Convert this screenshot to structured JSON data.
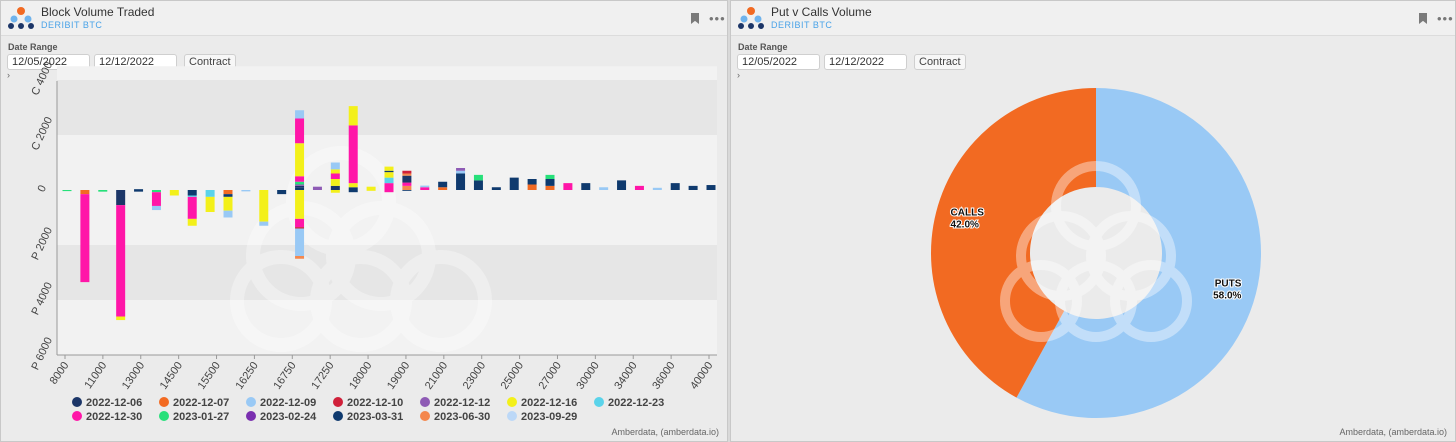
{
  "colors": {
    "header_bg": "#f0f0f0",
    "subtitle": "#4aa3e8",
    "calls": "#f26a22",
    "puts": "#99c9f5"
  },
  "left_panel": {
    "title": "Block Volume Traded",
    "subtitle": "DERIBIT BTC",
    "date_range_label": "Date Range",
    "start_date": "12/05/2022",
    "end_date": "12/12/2022",
    "contract_label": "Contract",
    "credit": "Amberdata, (amberdata.io)"
  },
  "right_panel": {
    "title": "Put v Calls Volume",
    "subtitle": "DERIBIT BTC",
    "date_range_label": "Date Range",
    "start_date": "12/05/2022",
    "end_date": "12/12/2022",
    "contract_label": "Contract",
    "credit": "Amberdata, (amberdata.io)"
  },
  "chart_data": [
    {
      "type": "bar",
      "stacked": true,
      "orientation": "calls positive, puts negative",
      "ylim": [
        -6000,
        4500
      ],
      "y_ticks": [
        {
          "value": 4000,
          "label": "C 4000"
        },
        {
          "value": 2000,
          "label": "C 2000"
        },
        {
          "value": 0,
          "label": "0"
        },
        {
          "value": -2000,
          "label": "P 2000"
        },
        {
          "value": -4000,
          "label": "P 4000"
        },
        {
          "value": -6000,
          "label": "P 6000"
        }
      ],
      "x_tick_labels": [
        "8000",
        "11000",
        "13000",
        "14500",
        "15500",
        "16250",
        "16750",
        "17250",
        "18000",
        "19000",
        "21000",
        "23000",
        "25000",
        "27000",
        "30000",
        "34000",
        "36000",
        "40000"
      ],
      "legend_position": "bottom",
      "legend": [
        {
          "name": "2022-12-06",
          "color": "#1c3668"
        },
        {
          "name": "2022-12-07",
          "color": "#f26a22"
        },
        {
          "name": "2022-12-09",
          "color": "#99c9f5"
        },
        {
          "name": "2022-12-10",
          "color": "#d0203a"
        },
        {
          "name": "2022-12-12",
          "color": "#8e5bb5"
        },
        {
          "name": "2022-12-16",
          "color": "#f3f01a"
        },
        {
          "name": "2022-12-23",
          "color": "#5ad3ea"
        },
        {
          "name": "2022-12-30",
          "color": "#ff16a8"
        },
        {
          "name": "2023-01-27",
          "color": "#27e07a"
        },
        {
          "name": "2023-02-24",
          "color": "#7a2fb0"
        },
        {
          "name": "2023-03-31",
          "color": "#0f3a6e"
        },
        {
          "name": "2023-06-30",
          "color": "#f4874d"
        },
        {
          "name": "2023-09-29",
          "color": "#bcd8f7"
        }
      ],
      "bars": [
        {
          "calls": [],
          "puts": [
            {
              "s": "2023-01-27",
              "v": 40
            }
          ]
        },
        {
          "calls": [],
          "puts": [
            {
              "s": "2022-12-07",
              "v": 150
            },
            {
              "s": "2022-12-30",
              "v": 3200
            }
          ]
        },
        {
          "calls": [],
          "puts": [
            {
              "s": "2023-01-27",
              "v": 60
            }
          ]
        },
        {
          "calls": [],
          "puts": [
            {
              "s": "2022-12-06",
              "v": 550
            },
            {
              "s": "2022-12-30",
              "v": 4050
            },
            {
              "s": "2022-12-16",
              "v": 130
            }
          ]
        },
        {
          "calls": [
            {
              "s": "2023-03-31",
              "v": 30
            }
          ],
          "puts": [
            {
              "s": "2023-03-31",
              "v": 60
            }
          ]
        },
        {
          "calls": [],
          "puts": [
            {
              "s": "2023-01-27",
              "v": 80
            },
            {
              "s": "2022-12-30",
              "v": 500
            },
            {
              "s": "2022-12-09",
              "v": 150
            }
          ]
        },
        {
          "calls": [],
          "puts": [
            {
              "s": "2022-12-16",
              "v": 200
            }
          ]
        },
        {
          "calls": [],
          "puts": [
            {
              "s": "2023-03-31",
              "v": 200
            },
            {
              "s": "2022-12-23",
              "v": 50
            },
            {
              "s": "2022-12-30",
              "v": 800
            },
            {
              "s": "2022-12-16",
              "v": 250
            }
          ]
        },
        {
          "calls": [],
          "puts": [
            {
              "s": "2022-12-23",
              "v": 250
            },
            {
              "s": "2022-12-16",
              "v": 550
            }
          ]
        },
        {
          "calls": [],
          "puts": [
            {
              "s": "2022-12-07",
              "v": 150
            },
            {
              "s": "2023-03-31",
              "v": 100
            },
            {
              "s": "2022-12-16",
              "v": 500
            },
            {
              "s": "2022-12-09",
              "v": 250
            }
          ]
        },
        {
          "calls": [],
          "puts": [
            {
              "s": "2022-12-09",
              "v": 50
            }
          ]
        },
        {
          "calls": [],
          "puts": [
            {
              "s": "2022-12-16",
              "v": 1150
            },
            {
              "s": "2022-12-09",
              "v": 150
            }
          ]
        },
        {
          "calls": [],
          "puts": [
            {
              "s": "2023-03-31",
              "v": 150
            }
          ]
        },
        {
          "calls": [
            {
              "s": "2023-03-31",
              "v": 100
            },
            {
              "s": "2022-12-06",
              "v": 50
            },
            {
              "s": "2022-12-12",
              "v": 50
            },
            {
              "s": "2023-01-27",
              "v": 100
            },
            {
              "s": "2022-12-30",
              "v": 200
            },
            {
              "s": "2022-12-16",
              "v": 1200
            },
            {
              "s": "2022-12-30",
              "v": 900
            },
            {
              "s": "2022-12-09",
              "v": 300
            }
          ],
          "puts": [
            {
              "s": "2022-12-16",
              "v": 1050
            },
            {
              "s": "2022-12-30",
              "v": 300
            },
            {
              "s": "2022-12-10",
              "v": 50
            },
            {
              "s": "2022-12-09",
              "v": 1000
            },
            {
              "s": "2023-06-30",
              "v": 100
            }
          ]
        },
        {
          "calls": [
            {
              "s": "2022-12-12",
              "v": 120
            }
          ],
          "puts": []
        },
        {
          "calls": [
            {
              "s": "2022-12-06",
              "v": 150
            },
            {
              "s": "2022-12-16",
              "v": 250
            },
            {
              "s": "2022-12-30",
              "v": 200
            },
            {
              "s": "2022-12-16",
              "v": 150
            },
            {
              "s": "2022-12-09",
              "v": 250
            }
          ],
          "puts": [
            {
              "s": "2022-12-16",
              "v": 100
            }
          ]
        },
        {
          "calls": [
            {
              "s": "2023-03-31",
              "v": 100
            },
            {
              "s": "2022-12-16",
              "v": 150
            },
            {
              "s": "2022-12-30",
              "v": 2100
            },
            {
              "s": "2022-12-16",
              "v": 700
            }
          ],
          "puts": [
            {
              "s": "2023-03-31",
              "v": 80
            }
          ]
        },
        {
          "calls": [
            {
              "s": "2022-12-16",
              "v": 120
            }
          ],
          "puts": [
            {
              "s": "2022-12-16",
              "v": 30
            }
          ]
        },
        {
          "calls": [
            {
              "s": "2022-12-30",
              "v": 250
            },
            {
              "s": "2022-12-23",
              "v": 200
            },
            {
              "s": "2022-12-16",
              "v": 200
            },
            {
              "s": "2023-03-31",
              "v": 50
            },
            {
              "s": "2022-12-16",
              "v": 150
            }
          ],
          "puts": [
            {
              "s": "2022-12-30",
              "v": 80
            }
          ]
        },
        {
          "calls": [
            {
              "s": "2023-06-30",
              "v": 150
            },
            {
              "s": "2022-12-30",
              "v": 120
            },
            {
              "s": "2022-12-06",
              "v": 250
            },
            {
              "s": "2023-06-30",
              "v": 80
            },
            {
              "s": "2022-12-10",
              "v": 100
            }
          ],
          "puts": [
            {
              "s": "2023-03-31",
              "v": 30
            }
          ]
        },
        {
          "calls": [
            {
              "s": "2022-12-30",
              "v": 100
            },
            {
              "s": "2022-12-09",
              "v": 60
            }
          ],
          "puts": []
        },
        {
          "calls": [
            {
              "s": "2022-12-07",
              "v": 100
            },
            {
              "s": "2023-03-31",
              "v": 200
            }
          ],
          "puts": []
        },
        {
          "calls": [
            {
              "s": "2023-03-31",
              "v": 600
            },
            {
              "s": "2022-12-09",
              "v": 100
            },
            {
              "s": "2022-12-12",
              "v": 100
            }
          ],
          "puts": []
        },
        {
          "calls": [
            {
              "s": "2023-03-31",
              "v": 350
            },
            {
              "s": "2023-01-27",
              "v": 200
            }
          ],
          "puts": []
        },
        {
          "calls": [
            {
              "s": "2023-03-31",
              "v": 100
            }
          ],
          "puts": []
        },
        {
          "calls": [
            {
              "s": "2023-03-31",
              "v": 450
            }
          ],
          "puts": []
        },
        {
          "calls": [
            {
              "s": "2022-12-07",
              "v": 200
            },
            {
              "s": "2023-03-31",
              "v": 200
            }
          ],
          "puts": []
        },
        {
          "calls": [
            {
              "s": "2022-12-07",
              "v": 150
            },
            {
              "s": "2023-03-31",
              "v": 250
            },
            {
              "s": "2023-01-27",
              "v": 150
            }
          ],
          "puts": []
        },
        {
          "calls": [
            {
              "s": "2022-12-30",
              "v": 250
            }
          ],
          "puts": []
        },
        {
          "calls": [
            {
              "s": "2023-03-31",
              "v": 250
            }
          ],
          "puts": []
        },
        {
          "calls": [
            {
              "s": "2022-12-09",
              "v": 100
            }
          ],
          "puts": []
        },
        {
          "calls": [
            {
              "s": "2023-03-31",
              "v": 350
            }
          ],
          "puts": []
        },
        {
          "calls": [
            {
              "s": "2022-12-30",
              "v": 150
            }
          ],
          "puts": []
        },
        {
          "calls": [
            {
              "s": "2022-12-09",
              "v": 80
            }
          ],
          "puts": []
        },
        {
          "calls": [
            {
              "s": "2023-03-31",
              "v": 250
            }
          ],
          "puts": []
        },
        {
          "calls": [
            {
              "s": "2023-03-31",
              "v": 150
            }
          ],
          "puts": []
        },
        {
          "calls": [
            {
              "s": "2023-03-31",
              "v": 180
            }
          ],
          "puts": []
        }
      ]
    },
    {
      "type": "pie",
      "donut": true,
      "slices": [
        {
          "label": "PUTS",
          "percent": 58.0,
          "percent_label": "58.0%",
          "color": "#99c9f5"
        },
        {
          "label": "CALLS",
          "percent": 42.0,
          "percent_label": "42.0%",
          "color": "#f26a22"
        }
      ]
    }
  ]
}
